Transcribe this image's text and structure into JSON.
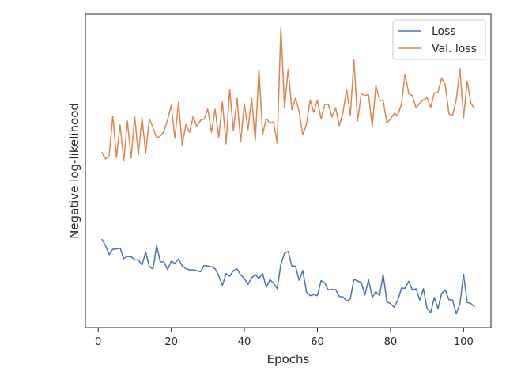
{
  "chart_data": {
    "type": "line",
    "title": "",
    "xlabel": "Epochs",
    "ylabel": "Negative log-likelihood",
    "xlim": [
      -3.5,
      107.5
    ],
    "ylim": [
      0,
      1
    ],
    "x_ticks": [
      0,
      20,
      40,
      60,
      80,
      100
    ],
    "y_ticks_labeled": false,
    "grid": false,
    "legend_position": "top-right",
    "x": [
      1,
      2,
      3,
      4,
      5,
      6,
      7,
      8,
      9,
      10,
      11,
      12,
      13,
      14,
      15,
      16,
      17,
      18,
      19,
      20,
      21,
      22,
      23,
      24,
      25,
      26,
      27,
      28,
      29,
      30,
      31,
      32,
      33,
      34,
      35,
      36,
      37,
      38,
      39,
      40,
      41,
      42,
      43,
      44,
      45,
      46,
      47,
      48,
      49,
      50,
      51,
      52,
      53,
      54,
      55,
      56,
      57,
      58,
      59,
      60,
      61,
      62,
      63,
      64,
      65,
      66,
      67,
      68,
      69,
      70,
      71,
      72,
      73,
      74,
      75,
      76,
      77,
      78,
      79,
      80,
      81,
      82,
      83,
      84,
      85,
      86,
      87,
      88,
      89,
      90,
      91,
      92,
      93,
      94,
      95,
      96,
      97,
      98,
      99,
      100,
      101,
      102,
      103
    ],
    "series": [
      {
        "name": "Loss",
        "color": "#4c72b0",
        "values": [
          0.283,
          0.262,
          0.233,
          0.25,
          0.251,
          0.254,
          0.22,
          0.227,
          0.226,
          0.217,
          0.216,
          0.2,
          0.241,
          0.194,
          0.187,
          0.262,
          0.21,
          0.21,
          0.185,
          0.212,
          0.205,
          0.219,
          0.197,
          0.188,
          0.184,
          0.184,
          0.182,
          0.178,
          0.198,
          0.196,
          0.194,
          0.188,
          0.165,
          0.135,
          0.172,
          0.164,
          0.182,
          0.187,
          0.168,
          0.157,
          0.138,
          0.159,
          0.169,
          0.157,
          0.173,
          0.128,
          0.153,
          0.142,
          0.124,
          0.202,
          0.237,
          0.243,
          0.196,
          0.196,
          0.151,
          0.182,
          0.114,
          0.102,
          0.105,
          0.102,
          0.15,
          0.143,
          0.12,
          0.122,
          0.121,
          0.099,
          0.098,
          0.085,
          0.092,
          0.154,
          0.149,
          0.144,
          0.104,
          0.153,
          0.097,
          0.115,
          0.102,
          0.17,
          0.082,
          0.077,
          0.065,
          0.087,
          0.126,
          0.126,
          0.148,
          0.12,
          0.124,
          0.088,
          0.124,
          0.061,
          0.048,
          0.096,
          0.061,
          0.109,
          0.12,
          0.089,
          0.088,
          0.044,
          0.076,
          0.17,
          0.08,
          0.077,
          0.066
        ]
      },
      {
        "name": "Val. loss",
        "color": "#dd8452",
        "values": [
          0.56,
          0.538,
          0.548,
          0.675,
          0.543,
          0.647,
          0.532,
          0.659,
          0.541,
          0.673,
          0.551,
          0.67,
          0.557,
          0.667,
          0.638,
          0.605,
          0.611,
          0.626,
          0.663,
          0.71,
          0.604,
          0.719,
          0.583,
          0.647,
          0.623,
          0.674,
          0.641,
          0.661,
          0.666,
          0.698,
          0.623,
          0.697,
          0.607,
          0.72,
          0.586,
          0.76,
          0.628,
          0.732,
          0.592,
          0.715,
          0.632,
          0.732,
          0.598,
          0.824,
          0.617,
          0.667,
          0.652,
          0.657,
          0.588,
          0.958,
          0.702,
          0.825,
          0.695,
          0.732,
          0.69,
          0.615,
          0.649,
          0.726,
          0.687,
          0.726,
          0.665,
          0.712,
          0.712,
          0.672,
          0.701,
          0.644,
          0.687,
          0.76,
          0.678,
          0.854,
          0.659,
          0.746,
          0.741,
          0.743,
          0.642,
          0.773,
          0.726,
          0.724,
          0.654,
          0.665,
          0.683,
          0.677,
          0.713,
          0.809,
          0.746,
          0.74,
          0.701,
          0.716,
          0.727,
          0.734,
          0.702,
          0.749,
          0.751,
          0.797,
          0.774,
          0.682,
          0.677,
          0.727,
          0.826,
          0.67,
          0.787,
          0.716,
          0.699
        ]
      }
    ]
  }
}
